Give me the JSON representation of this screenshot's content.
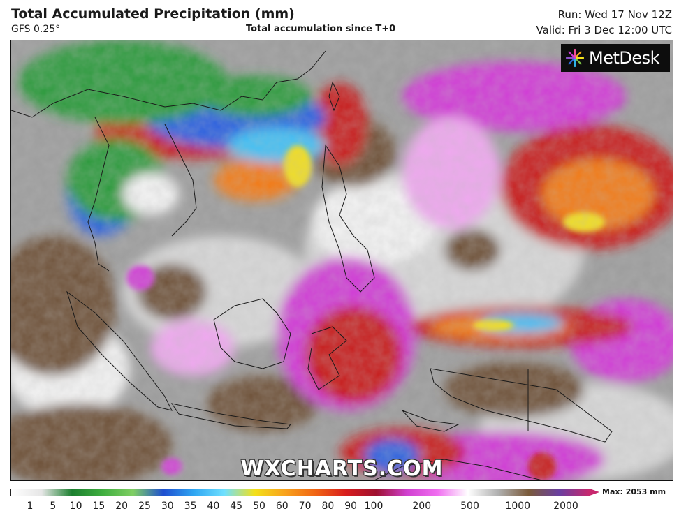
{
  "header": {
    "title": "Total Accumulated Precipitation (mm)",
    "model": "GFS 0.25°",
    "subtitle": "Total accumulation since T+0",
    "run": "Run: Wed 17 Nov 12Z",
    "valid": "Valid: Fri 3 Dec 12:00 UTC"
  },
  "branding": {
    "logo_text": "MetDesk",
    "watermark": "WXCHARTS.COM"
  },
  "legend": {
    "ticks": [
      "1",
      "5",
      "10",
      "15",
      "20",
      "25",
      "30",
      "35",
      "40",
      "45",
      "50",
      "60",
      "70",
      "80",
      "90",
      "100",
      "200",
      "500",
      "1000",
      "2000"
    ],
    "max_label": "Max: 2053 mm",
    "colors": [
      "#ffffff",
      "#e6e6e6",
      "#1b7f2f",
      "#3fae3f",
      "#80cf63",
      "#1e4fd0",
      "#2fa6f2",
      "#6fe0ff",
      "#f3e01a",
      "#f8a21c",
      "#f06414",
      "#d81d1d",
      "#9e1030",
      "#d040d0",
      "#f06ef0",
      "#ffffff",
      "#b0b0b0",
      "#7a5a3a",
      "#6a3fa0",
      "#c8286e"
    ]
  },
  "map": {
    "colors": {
      "ocean": "#9c9c9c",
      "dry_brown": "#6e5138",
      "light_gray": "#d8d8d8",
      "white": "#f4f4f4",
      "magenta": "#d13ad6",
      "pink": "#f0a8f0",
      "red": "#c81b1b",
      "orange": "#f27a18",
      "yellow": "#f3df1c",
      "blue": "#2a5ee0",
      "cyan": "#3fc0f5",
      "green": "#2c9a3a",
      "coast": "#1a1a1a"
    }
  }
}
